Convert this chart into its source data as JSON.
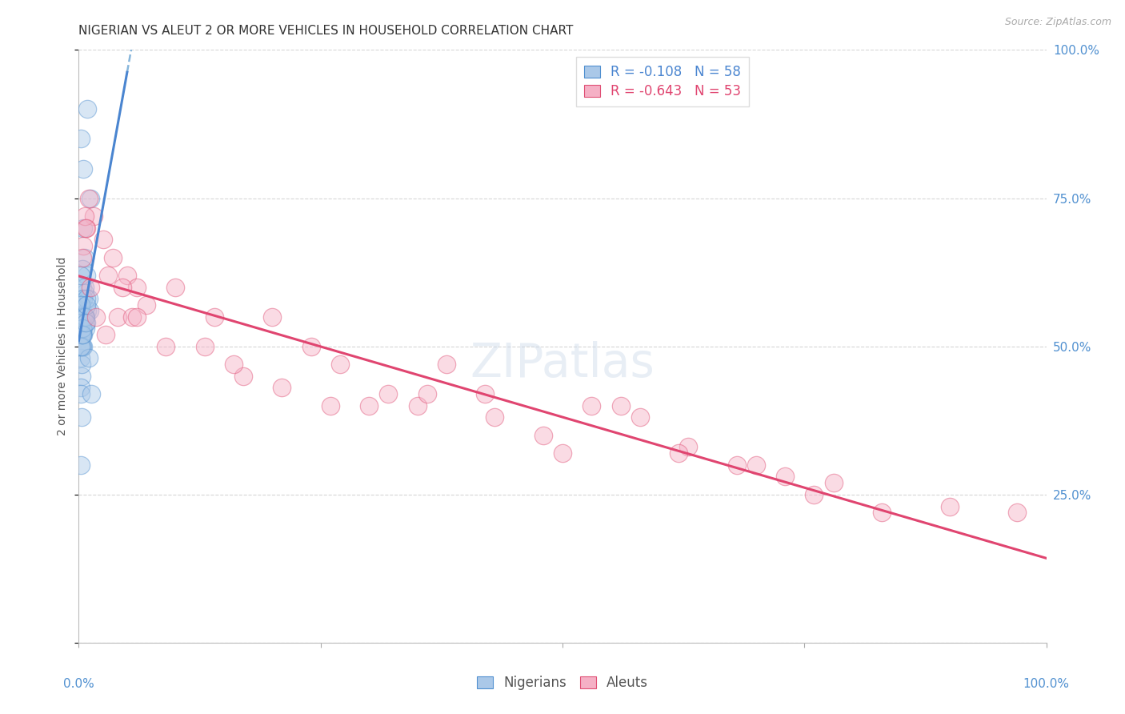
{
  "title": "NIGERIAN VS ALEUT 2 OR MORE VEHICLES IN HOUSEHOLD CORRELATION CHART",
  "source": "Source: ZipAtlas.com",
  "ylabel": "2 or more Vehicles in Household",
  "watermark": "ZIPatlas",
  "nigerian_R": -0.108,
  "nigerian_N": 58,
  "aleut_R": -0.643,
  "aleut_N": 53,
  "nigerian_fill_color": "#aac8e8",
  "aleut_fill_color": "#f5b0c5",
  "nigerian_edge_color": "#5090d0",
  "aleut_edge_color": "#e05075",
  "nigerian_line_color": "#4a85d0",
  "aleut_line_color": "#e04570",
  "dashed_line_color": "#7aaed8",
  "ytick_color": "#5090d0",
  "xlim": [
    0,
    100
  ],
  "ylim": [
    0,
    100
  ],
  "yticks": [
    0,
    25,
    50,
    75,
    100
  ],
  "ytick_labels": [
    "",
    "25.0%",
    "50.0%",
    "75.0%",
    "100.0%"
  ],
  "xtick_labels": [
    "0.0%",
    "100.0%"
  ],
  "background_color": "#ffffff",
  "nigerian_x": [
    0.3,
    0.5,
    0.4,
    0.2,
    0.8,
    0.4,
    0.3,
    0.6,
    0.9,
    0.2,
    0.5,
    0.4,
    1.2,
    0.5,
    0.2,
    0.6,
    0.3,
    0.8,
    0.5,
    0.2,
    0.3,
    0.5,
    0.2,
    0.4,
    1.0,
    0.4,
    0.6,
    0.3,
    0.5,
    0.9,
    0.2,
    0.7,
    0.2,
    0.4,
    0.3,
    1.1,
    0.3,
    0.5,
    0.6,
    0.8,
    0.4,
    0.4,
    0.2,
    0.5,
    0.2,
    0.7,
    0.3,
    1.0,
    0.4,
    0.3,
    0.6,
    0.2,
    1.3,
    0.4,
    0.4,
    0.7,
    0.8,
    0.2
  ],
  "nigerian_y": [
    58,
    55,
    60,
    52,
    62,
    56,
    50,
    59,
    90,
    85,
    80,
    55,
    75,
    70,
    57,
    65,
    45,
    54,
    52,
    48,
    50,
    53,
    43,
    55,
    58,
    63,
    60,
    47,
    50,
    56,
    52,
    53,
    30,
    55,
    52,
    56,
    52,
    58,
    55,
    58,
    50,
    55,
    42,
    55,
    57,
    55,
    38,
    48,
    52,
    54,
    55,
    50,
    42,
    53,
    52,
    54,
    57,
    62
  ],
  "aleut_x": [
    0.5,
    1.0,
    0.4,
    1.5,
    0.8,
    0.6,
    2.5,
    1.2,
    3.0,
    3.5,
    4.0,
    5.0,
    5.5,
    6.0,
    7.0,
    10.0,
    14.0,
    17.0,
    20.0,
    24.0,
    27.0,
    32.0,
    35.0,
    38.0,
    42.0,
    48.0,
    53.0,
    58.0,
    63.0,
    68.0,
    73.0,
    78.0,
    0.7,
    1.8,
    2.8,
    4.5,
    6.0,
    9.0,
    13.0,
    16.0,
    21.0,
    26.0,
    30.0,
    36.0,
    43.0,
    50.0,
    56.0,
    62.0,
    70.0,
    76.0,
    83.0,
    90.0,
    97.0
  ],
  "aleut_y": [
    67,
    75,
    65,
    72,
    70,
    72,
    68,
    60,
    62,
    65,
    55,
    62,
    55,
    60,
    57,
    60,
    55,
    45,
    55,
    50,
    47,
    42,
    40,
    47,
    42,
    35,
    40,
    38,
    33,
    30,
    28,
    27,
    70,
    55,
    52,
    60,
    55,
    50,
    50,
    47,
    43,
    40,
    40,
    42,
    38,
    32,
    40,
    32,
    30,
    25,
    22,
    23,
    22
  ],
  "title_fontsize": 11,
  "axis_label_fontsize": 10,
  "tick_fontsize": 11,
  "legend_fontsize": 12,
  "source_fontsize": 9,
  "marker_size": 260,
  "marker_alpha": 0.45
}
